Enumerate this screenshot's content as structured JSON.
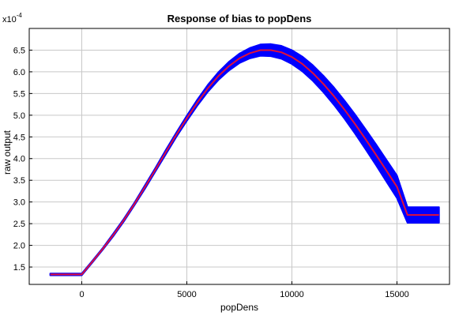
{
  "chart_data": {
    "type": "line",
    "title": "Response of bias to popDens",
    "xlabel": "popDens",
    "ylabel": "raw output",
    "y_multiplier_label": "x10",
    "y_multiplier_exp": "-4",
    "xlim": [
      -2500,
      17500
    ],
    "ylim": [
      1.1,
      7.0
    ],
    "x_ticks": [
      0,
      5000,
      10000,
      15000
    ],
    "x_tick_labels": [
      "0",
      "5000",
      "10000",
      "15000"
    ],
    "y_ticks": [
      1.5,
      2.0,
      2.5,
      3.0,
      3.5,
      4.0,
      4.5,
      5.0,
      5.5,
      6.0,
      6.5
    ],
    "y_tick_labels": [
      "1.5",
      "2.0",
      "2.5",
      "3.0",
      "3.5",
      "4.0",
      "4.5",
      "5.0",
      "5.5",
      "6.0",
      "6.5"
    ],
    "grid": true,
    "series": [
      {
        "color": "#e0103a",
        "kind": "line",
        "x": [
          -1500,
          0,
          500,
          1000,
          1500,
          2000,
          2500,
          3000,
          3500,
          4000,
          4500,
          5000,
          5500,
          6000,
          6500,
          7000,
          7500,
          8000,
          8500,
          9000,
          9500,
          10000,
          10500,
          11000,
          11500,
          12000,
          12500,
          13000,
          13500,
          14000,
          14500,
          15000,
          15500,
          16000,
          16500,
          17000
        ],
        "y": [
          1.33,
          1.33,
          1.62,
          1.92,
          2.24,
          2.58,
          2.95,
          3.34,
          3.74,
          4.15,
          4.55,
          4.93,
          5.29,
          5.62,
          5.9,
          6.13,
          6.31,
          6.43,
          6.5,
          6.5,
          6.45,
          6.34,
          6.18,
          5.97,
          5.72,
          5.44,
          5.13,
          4.8,
          4.45,
          4.09,
          3.72,
          3.35,
          2.7,
          2.7,
          2.7,
          2.7
        ]
      },
      {
        "color": "#0000ff",
        "kind": "band",
        "x": [
          -1500,
          0,
          500,
          1000,
          1500,
          2000,
          2500,
          3000,
          3500,
          4000,
          4500,
          5000,
          5500,
          6000,
          6500,
          7000,
          7500,
          8000,
          8500,
          9000,
          9500,
          10000,
          10500,
          11000,
          11500,
          12000,
          12500,
          13000,
          13500,
          14000,
          14500,
          15000,
          15500,
          16000,
          16500,
          17000
        ],
        "lower": [
          1.31,
          1.31,
          1.6,
          1.9,
          2.21,
          2.55,
          2.92,
          3.3,
          3.7,
          4.1,
          4.5,
          4.87,
          5.22,
          5.54,
          5.81,
          6.03,
          6.2,
          6.31,
          6.37,
          6.36,
          6.3,
          6.18,
          6.01,
          5.79,
          5.53,
          5.24,
          4.92,
          4.58,
          4.22,
          3.85,
          3.47,
          3.09,
          2.52,
          2.52,
          2.52,
          2.52
        ],
        "upper": [
          1.35,
          1.35,
          1.64,
          1.94,
          2.27,
          2.61,
          2.98,
          3.38,
          3.78,
          4.2,
          4.6,
          4.99,
          5.36,
          5.7,
          5.99,
          6.23,
          6.42,
          6.55,
          6.63,
          6.64,
          6.6,
          6.5,
          6.35,
          6.15,
          5.91,
          5.64,
          5.34,
          5.02,
          4.68,
          4.33,
          3.97,
          3.61,
          2.88,
          2.88,
          2.88,
          2.88
        ]
      }
    ]
  }
}
